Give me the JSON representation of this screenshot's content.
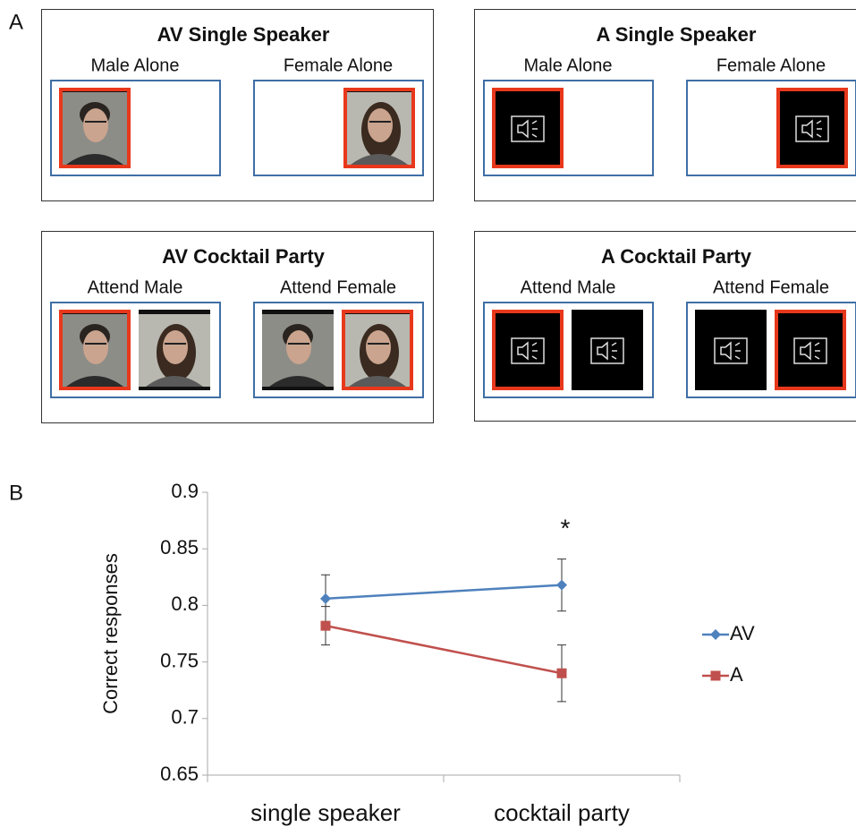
{
  "panel_a": {
    "label": "A",
    "boxes": [
      {
        "title": "AV Single Speaker",
        "conditions": [
          "Male Alone",
          "Female Alone"
        ]
      },
      {
        "title": "A Single Speaker",
        "conditions": [
          "Male Alone",
          "Female Alone"
        ]
      },
      {
        "title": "AV Cocktail Party",
        "conditions": [
          "Attend Male",
          "Attend Female"
        ]
      },
      {
        "title": "A Cocktail Party",
        "conditions": [
          "Attend Male",
          "Attend Female"
        ]
      }
    ]
  },
  "chart_data": {
    "type": "line",
    "label": "B",
    "ylabel": "Correct responses",
    "categories": [
      "single speaker",
      "cocktail party"
    ],
    "series": [
      {
        "name": "AV",
        "color": "#4f81bd",
        "marker": "diamond",
        "values": [
          0.806,
          0.818
        ],
        "errors": [
          0.021,
          0.023
        ]
      },
      {
        "name": "A",
        "color": "#c0504d",
        "marker": "square",
        "values": [
          0.782,
          0.74
        ],
        "errors": [
          0.017,
          0.025
        ]
      }
    ],
    "ylim": [
      0.65,
      0.9
    ],
    "yticks": [
      0.65,
      0.7,
      0.75,
      0.8,
      0.85,
      0.9
    ],
    "annotation": "*",
    "legend": "right"
  }
}
